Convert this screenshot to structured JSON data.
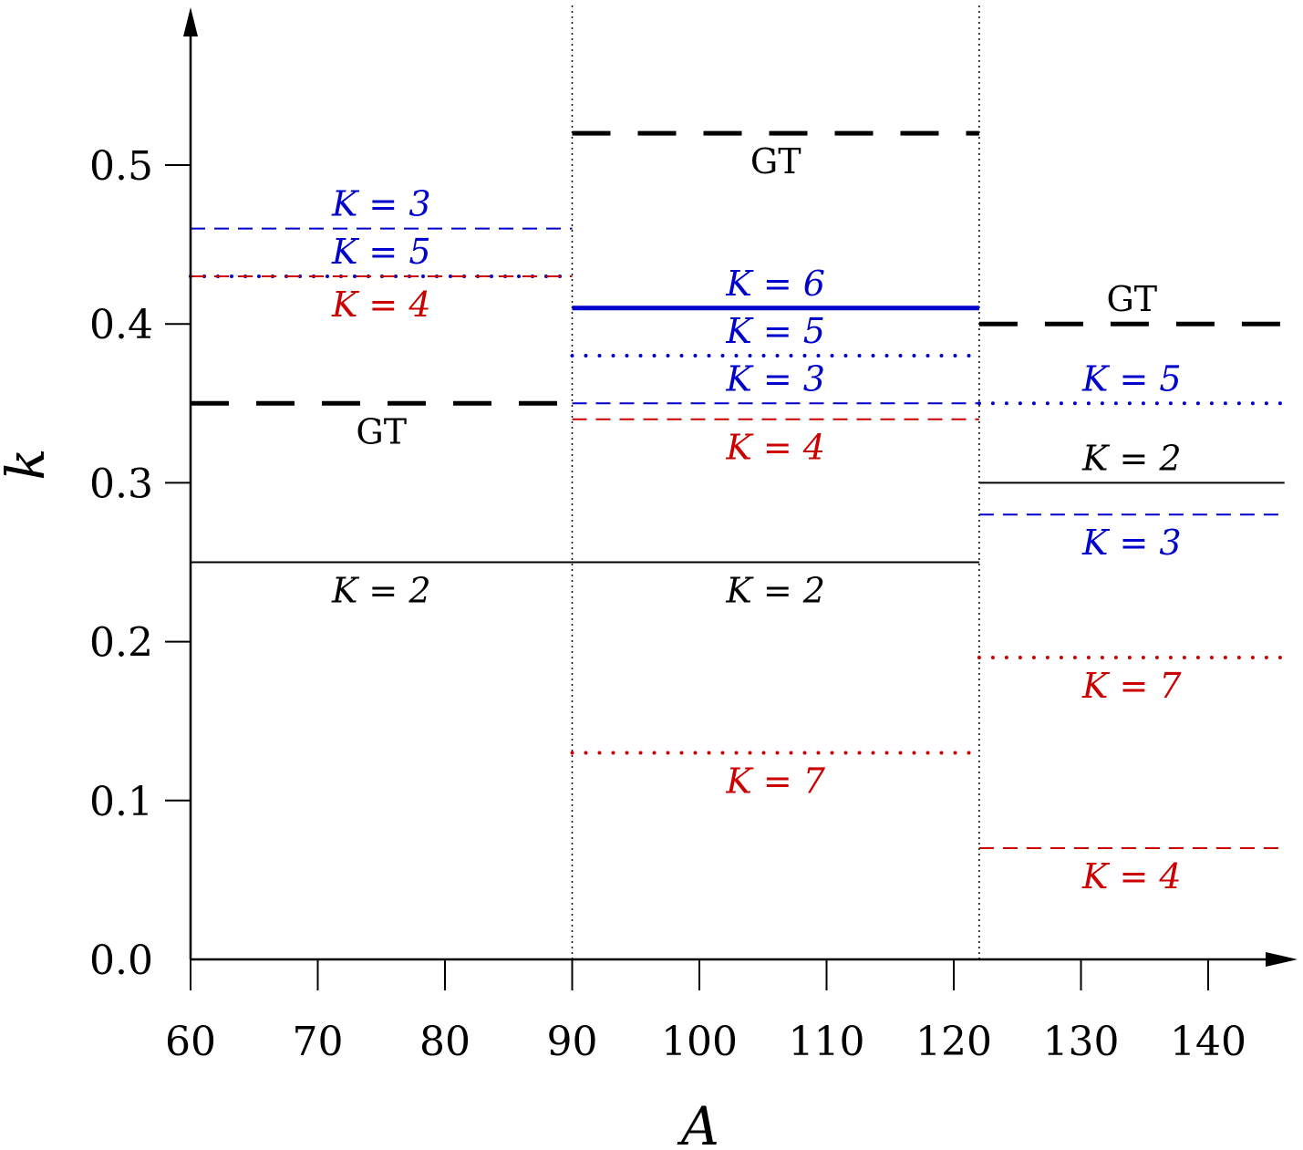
{
  "chart_data": {
    "type": "line",
    "xlabel": "A",
    "ylabel": "k",
    "xlim": [
      60,
      146
    ],
    "ylim": [
      0,
      0.58
    ],
    "xticks": [
      "60",
      "70",
      "80",
      "90",
      "100",
      "110",
      "120",
      "130",
      "140"
    ],
    "yticks": [
      "0.0",
      "0.1",
      "0.2",
      "0.3",
      "0.4",
      "0.5"
    ],
    "region_boundaries": [
      90,
      122
    ],
    "colors": {
      "black": "#000000",
      "blue": "#0000cc",
      "red": "#cc0000"
    },
    "segments": [
      {
        "x": [
          60,
          90
        ],
        "y": 0.46,
        "label": "K = 3",
        "color": "blue",
        "style": "dashed",
        "label_pos": "above"
      },
      {
        "x": [
          60,
          90
        ],
        "y": 0.43,
        "label": "K = 5",
        "color": "blue",
        "style": "dotted",
        "label_pos": "above"
      },
      {
        "x": [
          60,
          90
        ],
        "y": 0.43,
        "label": "K = 4",
        "color": "red",
        "style": "dashed",
        "label_pos": "below"
      },
      {
        "x": [
          60,
          90
        ],
        "y": 0.35,
        "label": "GT",
        "color": "black",
        "style": "thick-dashed",
        "label_pos": "below"
      },
      {
        "x": [
          60,
          122
        ],
        "y": 0.25,
        "label": "K = 2",
        "color": "black",
        "style": "solid",
        "label_pos": "below-split"
      },
      {
        "x": [
          90,
          122
        ],
        "y": 0.52,
        "label": "GT",
        "color": "black",
        "style": "thick-dashed",
        "label_pos": "below"
      },
      {
        "x": [
          90,
          122
        ],
        "y": 0.41,
        "label": "K = 6",
        "color": "blue",
        "style": "thick-solid",
        "label_pos": "above"
      },
      {
        "x": [
          90,
          122
        ],
        "y": 0.38,
        "label": "K = 5",
        "color": "blue",
        "style": "dotted",
        "label_pos": "above"
      },
      {
        "x": [
          90,
          122
        ],
        "y": 0.35,
        "label": "K = 3",
        "color": "blue",
        "style": "dashed",
        "label_pos": "above"
      },
      {
        "x": [
          90,
          122
        ],
        "y": 0.34,
        "label": "K = 4",
        "color": "red",
        "style": "dashed",
        "label_pos": "below"
      },
      {
        "x": [
          90,
          122
        ],
        "y": 0.13,
        "label": "K = 7",
        "color": "red",
        "style": "dotted",
        "label_pos": "below"
      },
      {
        "x": [
          122,
          146
        ],
        "y": 0.4,
        "label": "GT",
        "color": "black",
        "style": "thick-dashed",
        "label_pos": "above"
      },
      {
        "x": [
          122,
          146
        ],
        "y": 0.35,
        "label": "K = 5",
        "color": "blue",
        "style": "dotted",
        "label_pos": "above"
      },
      {
        "x": [
          122,
          146
        ],
        "y": 0.3,
        "label": "K = 2",
        "color": "black",
        "style": "solid",
        "label_pos": "above"
      },
      {
        "x": [
          122,
          146
        ],
        "y": 0.28,
        "label": "K = 3",
        "color": "blue",
        "style": "dashed",
        "label_pos": "below"
      },
      {
        "x": [
          122,
          146
        ],
        "y": 0.19,
        "label": "K = 7",
        "color": "red",
        "style": "dotted",
        "label_pos": "below"
      },
      {
        "x": [
          122,
          146
        ],
        "y": 0.07,
        "label": "K = 4",
        "color": "red",
        "style": "dashed",
        "label_pos": "below"
      }
    ]
  }
}
